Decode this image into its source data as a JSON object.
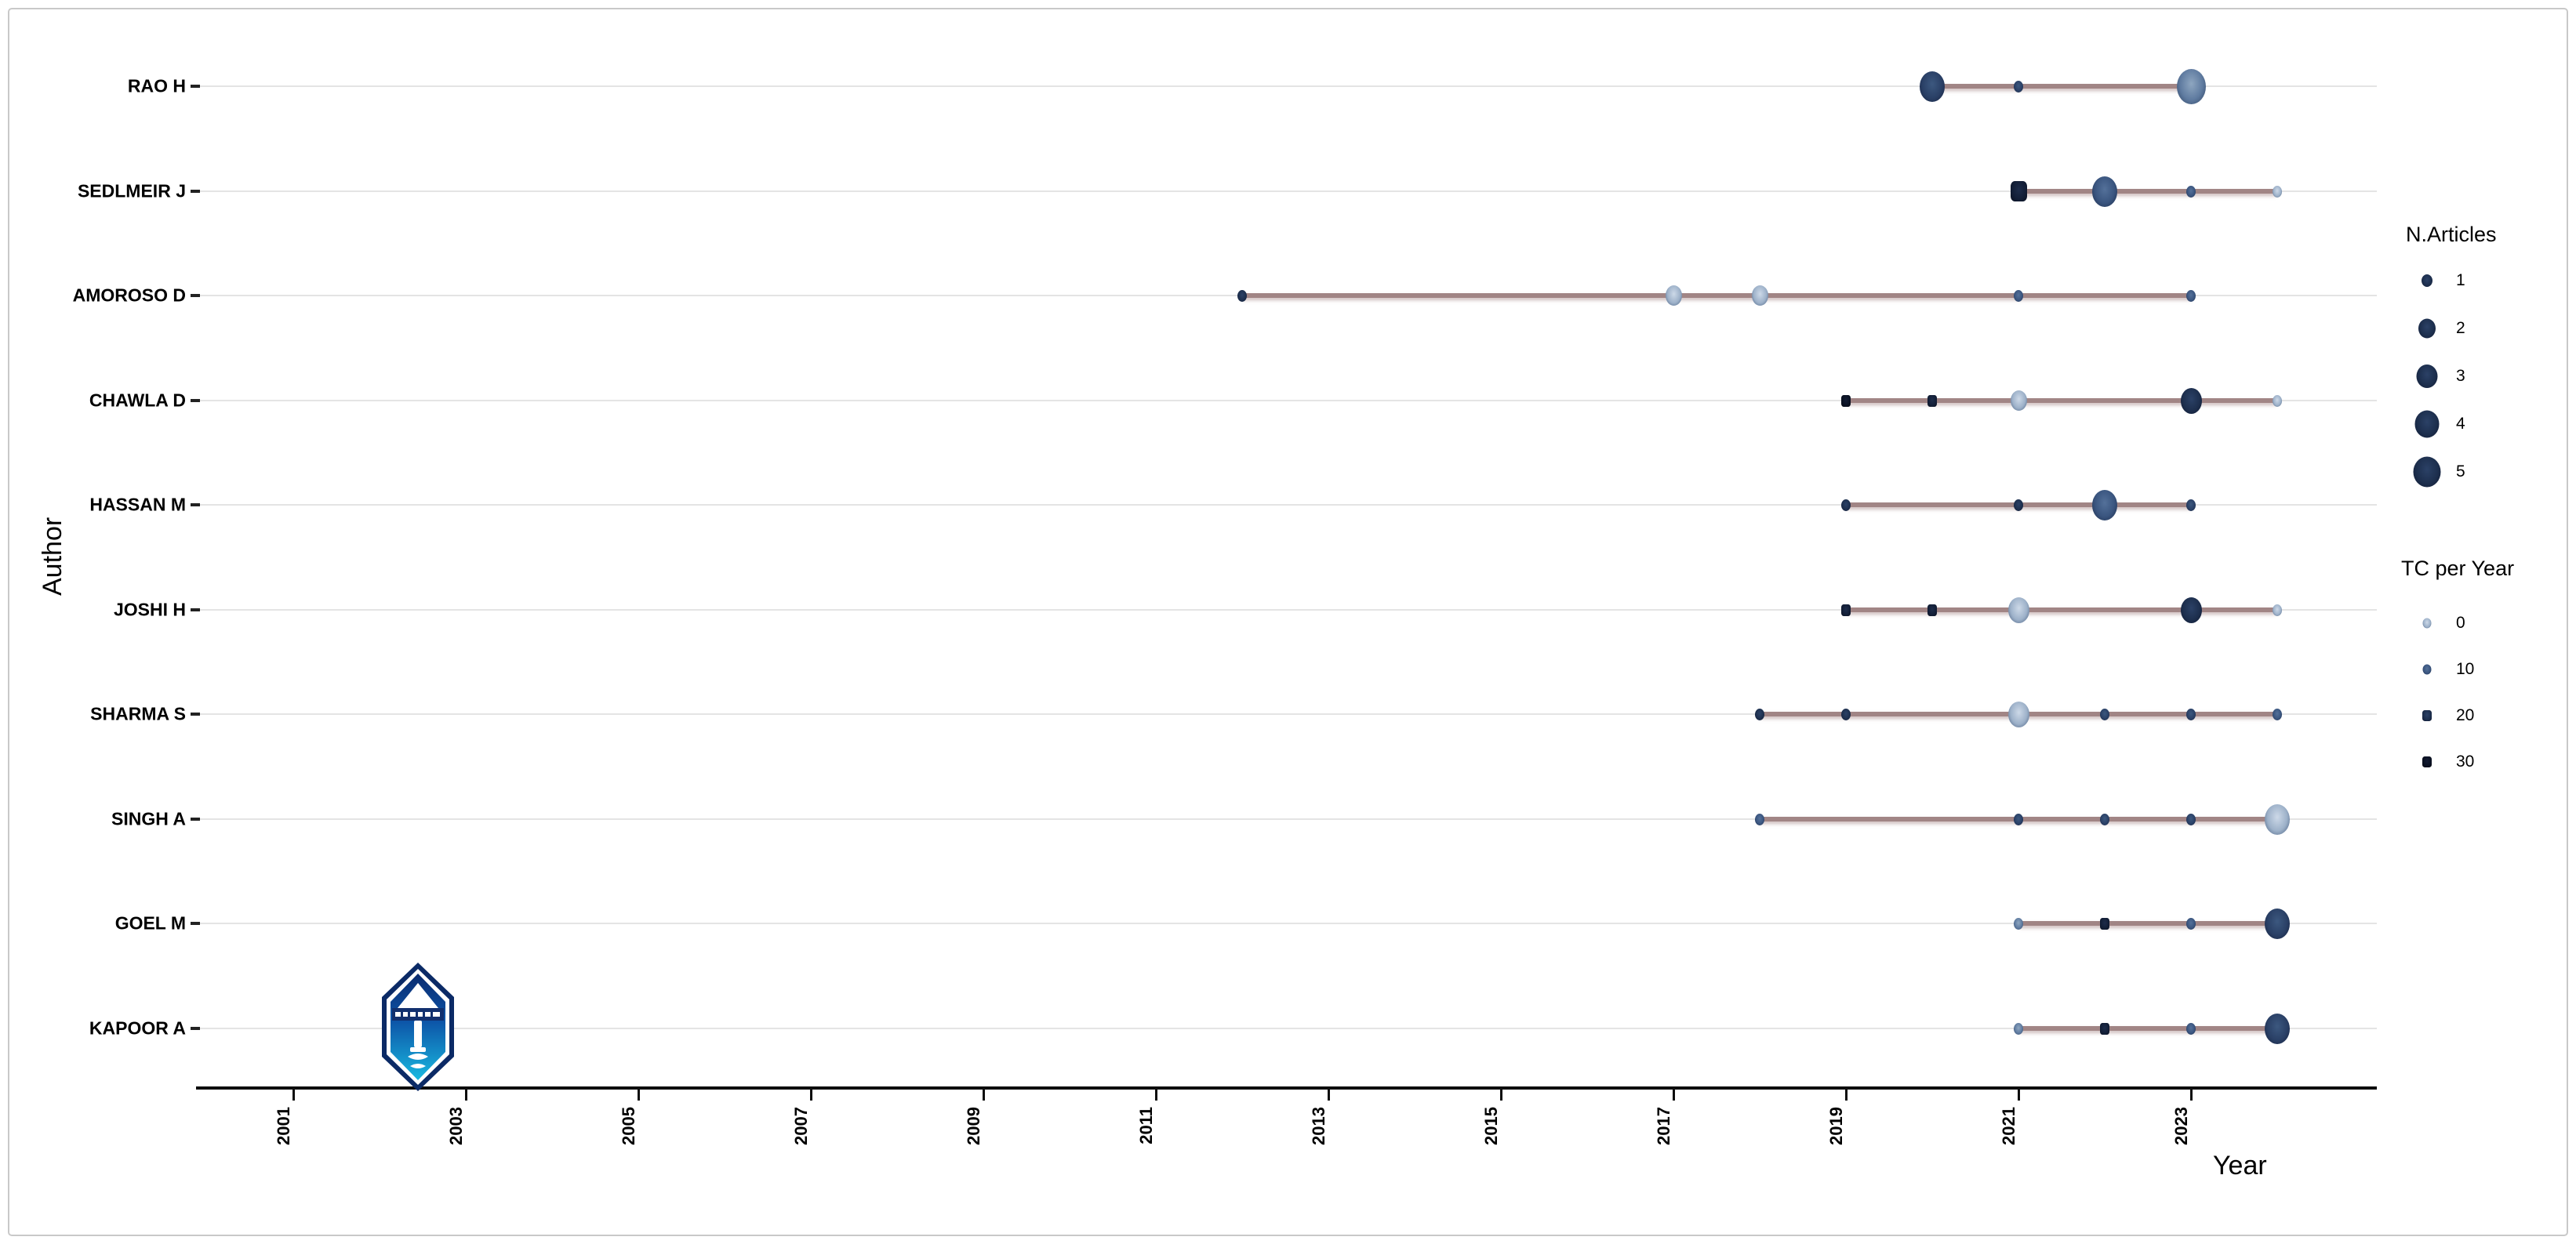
{
  "axes": {
    "y_title": "Author",
    "x_title": "Year"
  },
  "legend_articles": {
    "title": "N.Articles",
    "items": [
      1,
      2,
      3,
      4,
      5
    ]
  },
  "legend_tc": {
    "title": "TC per Year",
    "items": [
      0,
      10,
      20,
      30
    ]
  },
  "colors": {
    "timeline": "#a18585",
    "gridline": "#e4e4e4",
    "axis": "#0d0d0d",
    "frame_border": "#c9c9c9",
    "bubble_light": "#9db1c9",
    "bubble_mid": "#3a557f",
    "bubble_dark": "#131f38",
    "logo_top": "#0a2a6e",
    "logo_bottom": "#19b9e0"
  },
  "chart_data": {
    "type": "scatter",
    "title": "",
    "xlabel": "Year",
    "ylabel": "Author",
    "x_ticks": [
      2001,
      2003,
      2005,
      2007,
      2009,
      2011,
      2013,
      2015,
      2017,
      2019,
      2021,
      2023
    ],
    "x_range": [
      1999.9,
      2025.2
    ],
    "grid": "horizontal",
    "legend_position": "right",
    "size_legend": {
      "title": "N.Articles",
      "values": [
        1,
        2,
        3,
        4,
        5
      ]
    },
    "color_legend": {
      "title": "TC per Year",
      "values": [
        0,
        10,
        20,
        30
      ]
    },
    "series": [
      {
        "author": "RAO H",
        "line_years": [
          2020,
          2023
        ],
        "points": [
          {
            "year": 2020,
            "n_articles": 4,
            "tc_per_year": 15
          },
          {
            "year": 2021,
            "n_articles": 1,
            "tc_per_year": 15
          },
          {
            "year": 2023,
            "n_articles": 5,
            "tc_per_year": 8
          }
        ]
      },
      {
        "author": "SEDLMEIR J",
        "line_years": [
          2021,
          2024
        ],
        "points": [
          {
            "year": 2021,
            "n_articles": 2,
            "tc_per_year": 25
          },
          {
            "year": 2022,
            "n_articles": 4,
            "tc_per_year": 10
          },
          {
            "year": 2023,
            "n_articles": 1,
            "tc_per_year": 12
          },
          {
            "year": 2024,
            "n_articles": 1,
            "tc_per_year": 3
          }
        ]
      },
      {
        "author": "AMOROSO D",
        "line_years": [
          2012,
          2023
        ],
        "points": [
          {
            "year": 2012,
            "n_articles": 1,
            "tc_per_year": 20
          },
          {
            "year": 2017,
            "n_articles": 2,
            "tc_per_year": 4
          },
          {
            "year": 2018,
            "n_articles": 2,
            "tc_per_year": 4
          },
          {
            "year": 2021,
            "n_articles": 1,
            "tc_per_year": 12
          },
          {
            "year": 2023,
            "n_articles": 1,
            "tc_per_year": 10
          }
        ]
      },
      {
        "author": "CHAWLA D",
        "line_years": [
          2019,
          2024
        ],
        "points": [
          {
            "year": 2019,
            "n_articles": 1,
            "tc_per_year": 30
          },
          {
            "year": 2020,
            "n_articles": 1,
            "tc_per_year": 28
          },
          {
            "year": 2021,
            "n_articles": 2,
            "tc_per_year": 3
          },
          {
            "year": 2023,
            "n_articles": 3,
            "tc_per_year": 20
          },
          {
            "year": 2024,
            "n_articles": 1,
            "tc_per_year": 4
          }
        ]
      },
      {
        "author": "HASSAN M",
        "line_years": [
          2019,
          2023
        ],
        "points": [
          {
            "year": 2019,
            "n_articles": 1,
            "tc_per_year": 20
          },
          {
            "year": 2021,
            "n_articles": 1,
            "tc_per_year": 20
          },
          {
            "year": 2022,
            "n_articles": 4,
            "tc_per_year": 10
          },
          {
            "year": 2023,
            "n_articles": 1,
            "tc_per_year": 15
          }
        ]
      },
      {
        "author": "JOSHI H",
        "line_years": [
          2019,
          2024
        ],
        "points": [
          {
            "year": 2019,
            "n_articles": 1,
            "tc_per_year": 28
          },
          {
            "year": 2020,
            "n_articles": 1,
            "tc_per_year": 25
          },
          {
            "year": 2021,
            "n_articles": 3,
            "tc_per_year": 3
          },
          {
            "year": 2023,
            "n_articles": 3,
            "tc_per_year": 22
          },
          {
            "year": 2024,
            "n_articles": 1,
            "tc_per_year": 4
          }
        ]
      },
      {
        "author": "SHARMA S",
        "line_years": [
          2018,
          2024
        ],
        "points": [
          {
            "year": 2018,
            "n_articles": 1,
            "tc_per_year": 22
          },
          {
            "year": 2019,
            "n_articles": 1,
            "tc_per_year": 20
          },
          {
            "year": 2021,
            "n_articles": 3,
            "tc_per_year": 3
          },
          {
            "year": 2022,
            "n_articles": 1,
            "tc_per_year": 18
          },
          {
            "year": 2023,
            "n_articles": 1,
            "tc_per_year": 18
          },
          {
            "year": 2024,
            "n_articles": 1,
            "tc_per_year": 12
          }
        ]
      },
      {
        "author": "SINGH A",
        "line_years": [
          2018,
          2024
        ],
        "points": [
          {
            "year": 2018,
            "n_articles": 1,
            "tc_per_year": 10
          },
          {
            "year": 2021,
            "n_articles": 1,
            "tc_per_year": 18
          },
          {
            "year": 2022,
            "n_articles": 1,
            "tc_per_year": 18
          },
          {
            "year": 2023,
            "n_articles": 1,
            "tc_per_year": 15
          },
          {
            "year": 2024,
            "n_articles": 4,
            "tc_per_year": 1
          }
        ]
      },
      {
        "author": "GOEL M",
        "line_years": [
          2021,
          2024
        ],
        "points": [
          {
            "year": 2021,
            "n_articles": 1,
            "tc_per_year": 8
          },
          {
            "year": 2022,
            "n_articles": 1,
            "tc_per_year": 28
          },
          {
            "year": 2023,
            "n_articles": 1,
            "tc_per_year": 12
          },
          {
            "year": 2024,
            "n_articles": 4,
            "tc_per_year": 18
          }
        ]
      },
      {
        "author": "KAPOOR A",
        "line_years": [
          2021,
          2024
        ],
        "points": [
          {
            "year": 2021,
            "n_articles": 1,
            "tc_per_year": 8
          },
          {
            "year": 2022,
            "n_articles": 1,
            "tc_per_year": 28
          },
          {
            "year": 2023,
            "n_articles": 1,
            "tc_per_year": 12
          },
          {
            "year": 2024,
            "n_articles": 4,
            "tc_per_year": 18
          }
        ]
      }
    ]
  }
}
